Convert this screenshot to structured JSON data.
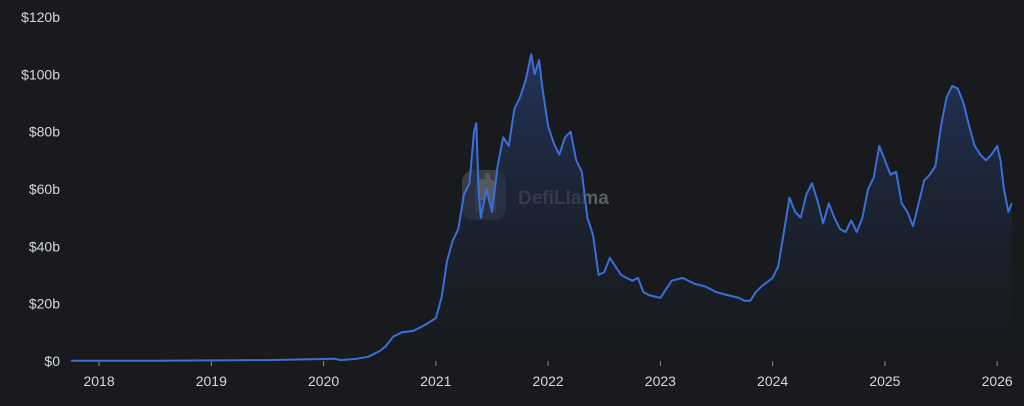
{
  "colors": {
    "background": "#181a1e",
    "line": "#3b6fd6",
    "area_top": "#23365f",
    "area_bottom": "#181a1e",
    "tick_text": "#d6d8dc",
    "watermark": "#5a5d63"
  },
  "watermark": {
    "text": "DefiLlama",
    "icon": "llama-logo-icon"
  },
  "chart_data": {
    "type": "area",
    "title": "",
    "xlabel": "",
    "ylabel": "",
    "grid": false,
    "legend": "none",
    "xlim": [
      2017.75,
      2026.15
    ],
    "ylim": [
      0,
      120
    ],
    "y_ticks": [
      {
        "value": 0,
        "label": "$0"
      },
      {
        "value": 20,
        "label": "$20b"
      },
      {
        "value": 40,
        "label": "$40b"
      },
      {
        "value": 60,
        "label": "$60b"
      },
      {
        "value": 80,
        "label": "$80b"
      },
      {
        "value": 100,
        "label": "$100b"
      },
      {
        "value": 120,
        "label": "$120b"
      }
    ],
    "x_ticks": [
      {
        "value": 2018,
        "label": "2018"
      },
      {
        "value": 2019,
        "label": "2019"
      },
      {
        "value": 2020,
        "label": "2020"
      },
      {
        "value": 2021,
        "label": "2021"
      },
      {
        "value": 2022,
        "label": "2022"
      },
      {
        "value": 2023,
        "label": "2023"
      },
      {
        "value": 2024,
        "label": "2024"
      },
      {
        "value": 2025,
        "label": "2025"
      },
      {
        "value": 2026,
        "label": "2026"
      }
    ],
    "x": [
      2017.75,
      2018.0,
      2018.5,
      2019.0,
      2019.5,
      2020.0,
      2020.1,
      2020.15,
      2020.3,
      2020.4,
      2020.5,
      2020.55,
      2020.62,
      2020.7,
      2020.8,
      2020.9,
      2021.0,
      2021.05,
      2021.1,
      2021.15,
      2021.2,
      2021.25,
      2021.3,
      2021.34,
      2021.36,
      2021.38,
      2021.4,
      2021.45,
      2021.5,
      2021.55,
      2021.6,
      2021.65,
      2021.7,
      2021.75,
      2021.8,
      2021.85,
      2021.88,
      2021.92,
      2021.95,
      2022.0,
      2022.05,
      2022.1,
      2022.15,
      2022.2,
      2022.25,
      2022.3,
      2022.35,
      2022.4,
      2022.45,
      2022.5,
      2022.55,
      2022.6,
      2022.65,
      2022.7,
      2022.75,
      2022.8,
      2022.85,
      2022.9,
      2023.0,
      2023.1,
      2023.2,
      2023.3,
      2023.4,
      2023.5,
      2023.6,
      2023.7,
      2023.75,
      2023.8,
      2023.85,
      2023.9,
      2024.0,
      2024.05,
      2024.1,
      2024.15,
      2024.2,
      2024.25,
      2024.3,
      2024.35,
      2024.4,
      2024.45,
      2024.5,
      2024.55,
      2024.6,
      2024.65,
      2024.7,
      2024.75,
      2024.8,
      2024.85,
      2024.9,
      2024.95,
      2025.0,
      2025.05,
      2025.1,
      2025.15,
      2025.2,
      2025.25,
      2025.3,
      2025.35,
      2025.4,
      2025.45,
      2025.5,
      2025.55,
      2025.6,
      2025.65,
      2025.7,
      2025.75,
      2025.8,
      2025.85,
      2025.9,
      2025.95,
      2026.0,
      2026.03,
      2026.06,
      2026.1,
      2026.13
    ],
    "series": [
      {
        "values": [
          0.1,
          0.1,
          0.1,
          0.2,
          0.3,
          0.7,
          0.8,
          0.3,
          0.8,
          1.5,
          3.5,
          5.0,
          8.5,
          10.0,
          10.5,
          12.5,
          15.0,
          22.0,
          35.0,
          42.0,
          46.0,
          58.0,
          62.0,
          80.0,
          83.0,
          60.0,
          50.0,
          60.0,
          52.0,
          68.0,
          78.0,
          75.0,
          88.0,
          92.0,
          98.0,
          107.0,
          100.0,
          105.0,
          95.0,
          82.0,
          76.0,
          72.0,
          78.0,
          80.0,
          70.0,
          66.0,
          50.0,
          44.0,
          30.0,
          31.0,
          36.0,
          33.0,
          30.0,
          29.0,
          28.0,
          29.0,
          24.0,
          23.0,
          22.0,
          28.0,
          29.0,
          27.0,
          26.0,
          24.0,
          23.0,
          22.0,
          21.0,
          21.0,
          24.0,
          26.0,
          29.0,
          33.0,
          45.0,
          57.0,
          52.0,
          50.0,
          58.0,
          62.0,
          56.0,
          48.0,
          55.0,
          50.0,
          46.0,
          45.0,
          49.0,
          45.0,
          50.0,
          60.0,
          64.0,
          75.0,
          70.0,
          65.0,
          66.0,
          55.0,
          52.0,
          47.0,
          55.0,
          63.0,
          65.0,
          68.0,
          82.0,
          92.0,
          96.0,
          95.0,
          90.0,
          82.0,
          75.0,
          72.0,
          70.0,
          72.0,
          75.0,
          70.0,
          60.0,
          52.0,
          55.0
        ]
      }
    ]
  }
}
